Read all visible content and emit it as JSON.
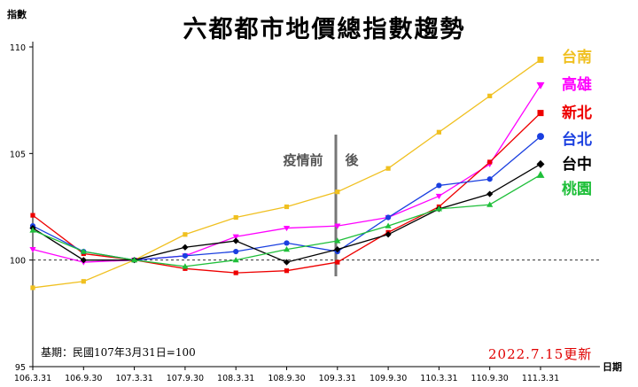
{
  "chart_data": {
    "type": "line",
    "title": "六都都市地價總指數趨勢",
    "ylabel": "指數",
    "xlabel": "日期",
    "categories": [
      "106.3.31",
      "106.9.30",
      "107.3.31",
      "107.9.30",
      "108.3.31",
      "108.9.30",
      "109.3.31",
      "109.9.30",
      "110.3.31",
      "110.9.30",
      "111.3.31"
    ],
    "y_ticks": [
      "95",
      "100",
      "105",
      "110"
    ],
    "ylim": [
      95,
      110
    ],
    "reference_line": 100,
    "grid": false,
    "legend_position": "right",
    "series": [
      {
        "name": "台南",
        "color": "#f0c020",
        "marker": "square",
        "values": [
          98.7,
          99.0,
          100.0,
          101.2,
          102.0,
          102.5,
          103.2,
          104.3,
          106.0,
          107.7,
          109.4
        ]
      },
      {
        "name": "高雄",
        "color": "#ff00ff",
        "marker": "triangle-down",
        "values": [
          100.5,
          99.9,
          100.0,
          100.2,
          101.1,
          101.5,
          101.6,
          102.0,
          103.0,
          104.5,
          108.2
        ]
      },
      {
        "name": "新北",
        "color": "#ee0000",
        "marker": "square",
        "values": [
          102.1,
          100.3,
          100.0,
          99.6,
          99.4,
          99.5,
          99.9,
          101.3,
          102.5,
          104.6,
          106.9
        ]
      },
      {
        "name": "台北",
        "color": "#1a3fe0",
        "marker": "circle",
        "values": [
          101.6,
          100.4,
          100.0,
          100.2,
          100.4,
          100.8,
          100.4,
          102.0,
          103.5,
          103.8,
          105.8
        ]
      },
      {
        "name": "台中",
        "color": "#000000",
        "marker": "diamond",
        "values": [
          101.5,
          100.0,
          100.0,
          100.6,
          100.9,
          99.9,
          100.5,
          101.2,
          102.4,
          103.1,
          104.5
        ]
      },
      {
        "name": "桃園",
        "color": "#1fbf3a",
        "marker": "triangle-up",
        "values": [
          101.4,
          100.4,
          100.0,
          99.7,
          100.0,
          100.5,
          100.9,
          101.6,
          102.4,
          102.6,
          104.0
        ]
      }
    ],
    "annotations": {
      "covid_label_before": "疫情前",
      "covid_label_after": "後",
      "base_note": "基期：民國107年3月31日=100",
      "update_note": "2022.7.15更新"
    }
  }
}
